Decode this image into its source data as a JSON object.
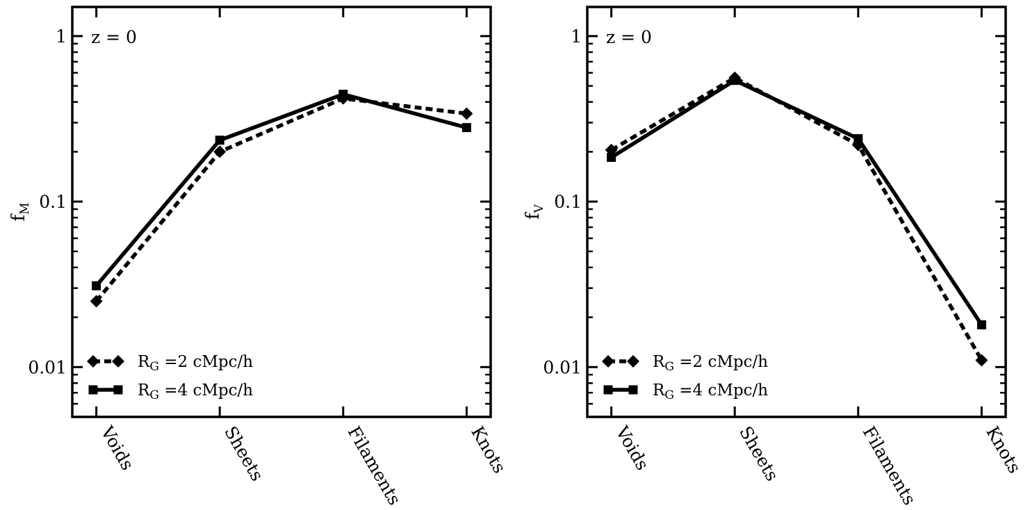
{
  "chart_data": [
    {
      "type": "line",
      "annotation": "z = 0",
      "ylabel_main": "f",
      "ylabel_sub": "M",
      "yscale": "log",
      "ylim": [
        0.005,
        1.5
      ],
      "yticks": [
        1,
        0.1,
        0.01
      ],
      "ytick_labels": [
        "1",
        "0.1",
        "0.01"
      ],
      "categories": [
        "Voids",
        "Sheets",
        "Filaments",
        "Knots"
      ],
      "series": [
        {
          "legend_main": "R",
          "legend_sub": "G",
          "legend_text": "=2 cMpc/h",
          "style": "dashed",
          "marker": "diamond",
          "values": [
            0.025,
            0.2,
            0.42,
            0.34
          ]
        },
        {
          "legend_main": "R",
          "legend_sub": "G",
          "legend_text": "=4 cMpc/h",
          "style": "solid",
          "marker": "square",
          "values": [
            0.031,
            0.235,
            0.445,
            0.28
          ]
        }
      ],
      "legend_position": "lower-left",
      "grid": false
    },
    {
      "type": "line",
      "annotation": "z = 0",
      "ylabel_main": "f",
      "ylabel_sub": "V",
      "yscale": "log",
      "ylim": [
        0.005,
        1.5
      ],
      "yticks": [
        1,
        0.1,
        0.01
      ],
      "ytick_labels": [
        "1",
        "0.1",
        "0.01"
      ],
      "categories": [
        "Voids",
        "Sheets",
        "Filaments",
        "Knots"
      ],
      "series": [
        {
          "legend_main": "R",
          "legend_sub": "G",
          "legend_text": "=2 cMpc/h",
          "style": "dashed",
          "marker": "diamond",
          "values": [
            0.205,
            0.56,
            0.22,
            0.011
          ]
        },
        {
          "legend_main": "R",
          "legend_sub": "G",
          "legend_text": "=4 cMpc/h",
          "style": "solid",
          "marker": "square",
          "values": [
            0.185,
            0.54,
            0.24,
            0.018
          ]
        }
      ],
      "legend_position": "lower-left",
      "grid": false
    }
  ]
}
